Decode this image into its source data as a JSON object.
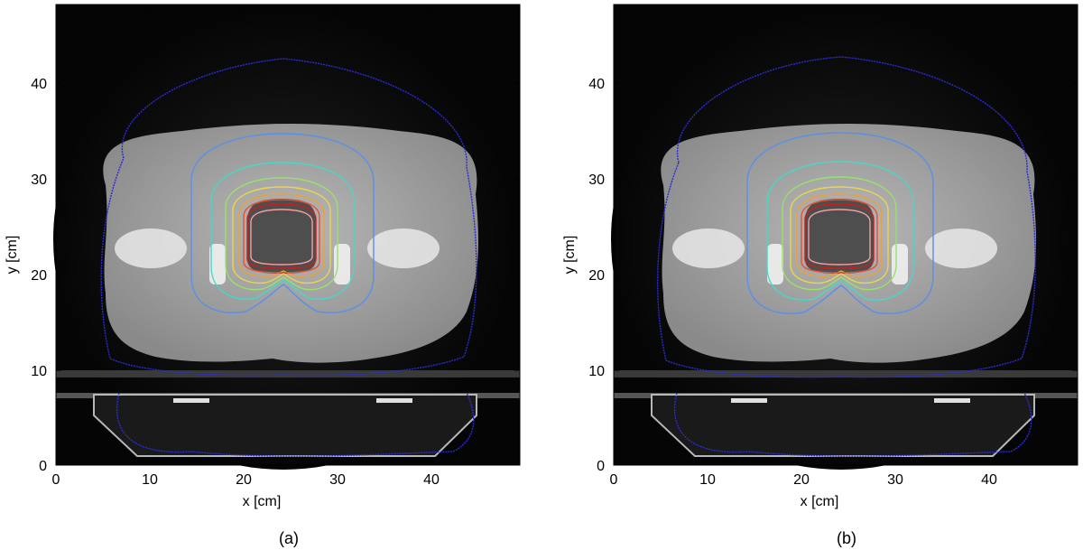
{
  "panels": [
    {
      "caption": "(a)",
      "xlabel": "x [cm]",
      "ylabel": "y [cm]",
      "x_ticks": [
        "0",
        "10",
        "20",
        "30",
        "40"
      ],
      "y_ticks": [
        "0",
        "10",
        "20",
        "30",
        "40"
      ]
    },
    {
      "caption": "(b)",
      "xlabel": "x [cm]",
      "ylabel": "y [cm]",
      "x_ticks": [
        "0",
        "10",
        "20",
        "30",
        "40"
      ],
      "y_ticks": [
        "0",
        "10",
        "20",
        "30",
        "40"
      ]
    }
  ],
  "isodose_colors": [
    "#2b2bd6",
    "#5a8fe8",
    "#46d8c8",
    "#9be06a",
    "#e8d848",
    "#f0a030",
    "#e85030",
    "#c81e1e",
    "#f4a0a0"
  ]
}
